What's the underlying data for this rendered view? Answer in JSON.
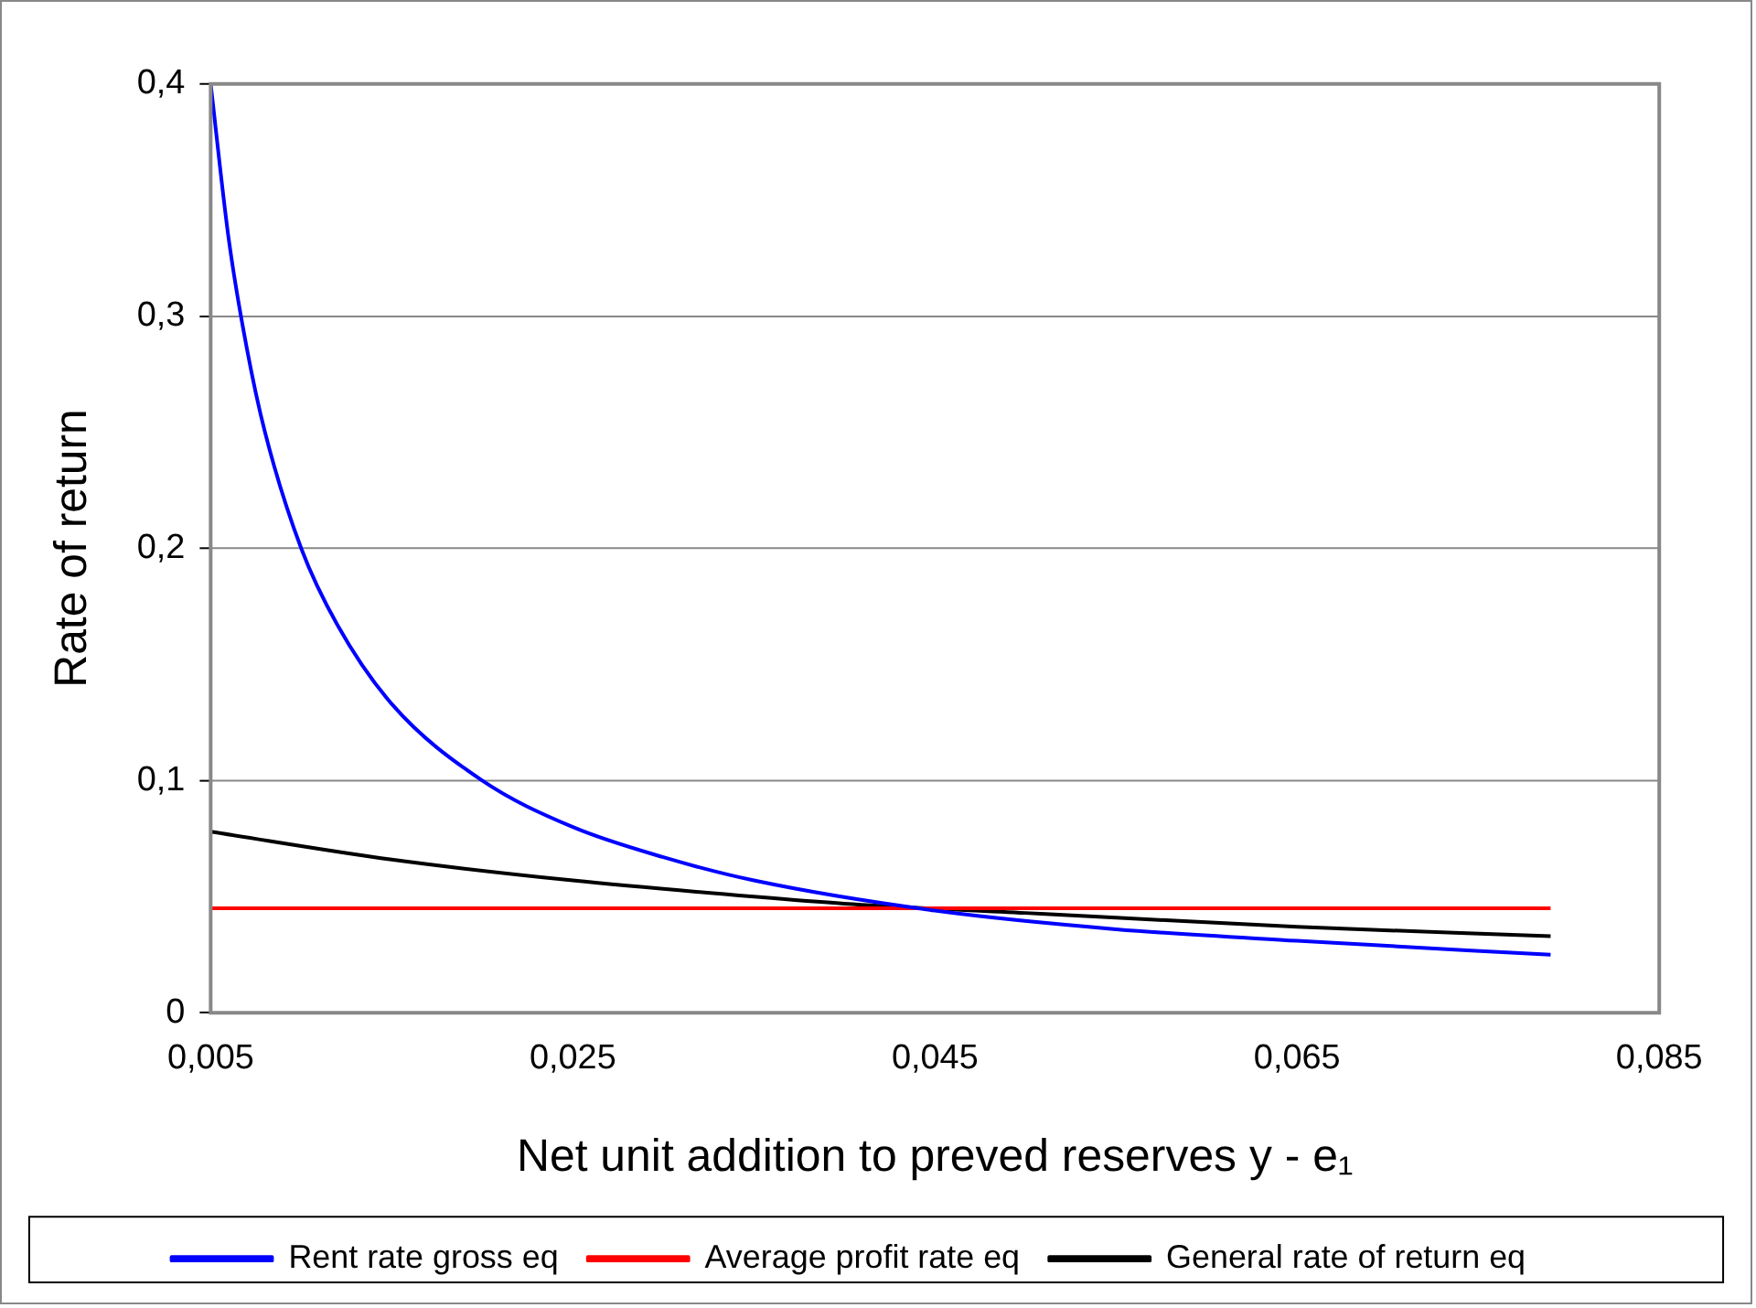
{
  "chart_data": {
    "type": "line",
    "xlabel": "Net unit addition to preved reserves y - e₁",
    "ylabel": "Rate of return",
    "xlim": [
      0.005,
      0.085
    ],
    "xticks": [
      {
        "value": 0.005,
        "label": "0,005"
      },
      {
        "value": 0.025,
        "label": "0,025"
      },
      {
        "value": 0.045,
        "label": "0,045"
      },
      {
        "value": 0.065,
        "label": "0,065"
      },
      {
        "value": 0.085,
        "label": "0,085"
      }
    ],
    "ylim": [
      0,
      0.4
    ],
    "yticks": [
      0,
      {
        "value": 0.1,
        "label": "0,1"
      },
      {
        "value": 0.2,
        "label": "0,2"
      },
      {
        "value": 0.3,
        "label": "0,3"
      },
      {
        "value": 0.4,
        "label": "0,4"
      }
    ],
    "grid": "y",
    "legend": "bottom",
    "marker": "none",
    "line_style": "solid",
    "series": [
      {
        "name": "Rent rate gross eq",
        "color": "#0000ff",
        "x": [
          0.005,
          0.006,
          0.007,
          0.008,
          0.01,
          0.012,
          0.015,
          0.02,
          0.025,
          0.03,
          0.035,
          0.045,
          0.055,
          0.065,
          0.079
        ],
        "values": [
          0.4,
          0.333,
          0.286,
          0.25,
          0.2,
          0.167,
          0.133,
          0.1,
          0.08,
          0.067,
          0.057,
          0.044,
          0.036,
          0.031,
          0.025
        ]
      },
      {
        "name": "Average profit rate eq",
        "color": "#ff0000",
        "x": [
          0.005,
          0.079
        ],
        "values": [
          0.045,
          0.045
        ]
      },
      {
        "name": "General rate of return eq",
        "color": "#000000",
        "x": [
          0.005,
          0.015,
          0.025,
          0.035,
          0.04,
          0.05,
          0.055,
          0.065,
          0.079
        ],
        "values": [
          0.078,
          0.066,
          0.057,
          0.05,
          0.047,
          0.043,
          0.041,
          0.037,
          0.033
        ]
      }
    ]
  }
}
